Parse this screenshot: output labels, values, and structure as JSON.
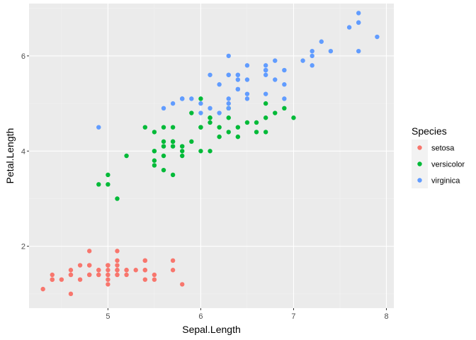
{
  "chart_data": {
    "type": "scatter",
    "xlabel": "Sepal.Length",
    "ylabel": "Petal.Length",
    "xlim": [
      4.15,
      8.08
    ],
    "ylim": [
      0.7,
      7.1
    ],
    "x_ticks": [
      5,
      6,
      7,
      8
    ],
    "y_ticks": [
      2,
      4,
      6
    ],
    "grid": true,
    "legend": {
      "title": "Species",
      "position": "right"
    },
    "series": [
      {
        "name": "setosa",
        "color": "#F8766D",
        "points": [
          [
            5.1,
            1.4
          ],
          [
            4.9,
            1.4
          ],
          [
            4.7,
            1.3
          ],
          [
            4.6,
            1.5
          ],
          [
            5.0,
            1.4
          ],
          [
            5.4,
            1.7
          ],
          [
            4.6,
            1.4
          ],
          [
            5.0,
            1.5
          ],
          [
            4.4,
            1.4
          ],
          [
            4.9,
            1.5
          ],
          [
            5.4,
            1.5
          ],
          [
            4.8,
            1.6
          ],
          [
            4.8,
            1.4
          ],
          [
            4.3,
            1.1
          ],
          [
            5.8,
            1.2
          ],
          [
            5.7,
            1.5
          ],
          [
            5.4,
            1.3
          ],
          [
            5.1,
            1.4
          ],
          [
            5.7,
            1.7
          ],
          [
            5.1,
            1.5
          ],
          [
            5.4,
            1.7
          ],
          [
            5.1,
            1.5
          ],
          [
            4.6,
            1.0
          ],
          [
            5.1,
            1.7
          ],
          [
            4.8,
            1.9
          ],
          [
            5.0,
            1.6
          ],
          [
            5.0,
            1.6
          ],
          [
            5.2,
            1.5
          ],
          [
            5.2,
            1.4
          ],
          [
            4.7,
            1.6
          ],
          [
            4.8,
            1.6
          ],
          [
            5.4,
            1.5
          ],
          [
            5.2,
            1.5
          ],
          [
            5.5,
            1.4
          ],
          [
            4.9,
            1.5
          ],
          [
            5.0,
            1.2
          ],
          [
            5.5,
            1.3
          ],
          [
            4.9,
            1.4
          ],
          [
            4.4,
            1.3
          ],
          [
            5.1,
            1.5
          ],
          [
            5.0,
            1.3
          ],
          [
            4.5,
            1.3
          ],
          [
            4.4,
            1.3
          ],
          [
            5.0,
            1.6
          ],
          [
            5.1,
            1.9
          ],
          [
            4.8,
            1.4
          ],
          [
            5.1,
            1.6
          ],
          [
            4.6,
            1.4
          ],
          [
            5.3,
            1.5
          ],
          [
            5.0,
            1.4
          ]
        ]
      },
      {
        "name": "versicolor",
        "color": "#00BA38",
        "points": [
          [
            7.0,
            4.7
          ],
          [
            6.4,
            4.5
          ],
          [
            6.9,
            4.9
          ],
          [
            5.5,
            4.0
          ],
          [
            6.5,
            4.6
          ],
          [
            5.7,
            4.5
          ],
          [
            6.3,
            4.7
          ],
          [
            4.9,
            3.3
          ],
          [
            6.6,
            4.6
          ],
          [
            5.2,
            3.9
          ],
          [
            5.0,
            3.5
          ],
          [
            5.9,
            4.2
          ],
          [
            6.0,
            4.0
          ],
          [
            6.1,
            4.7
          ],
          [
            5.6,
            3.6
          ],
          [
            6.7,
            4.4
          ],
          [
            5.6,
            4.5
          ],
          [
            5.8,
            4.1
          ],
          [
            6.2,
            4.5
          ],
          [
            5.6,
            3.9
          ],
          [
            5.9,
            4.8
          ],
          [
            6.1,
            4.0
          ],
          [
            6.3,
            4.9
          ],
          [
            6.1,
            4.7
          ],
          [
            6.4,
            4.3
          ],
          [
            6.6,
            4.4
          ],
          [
            6.8,
            4.8
          ],
          [
            6.7,
            5.0
          ],
          [
            6.0,
            4.5
          ],
          [
            5.7,
            3.5
          ],
          [
            5.5,
            3.8
          ],
          [
            5.5,
            3.7
          ],
          [
            5.8,
            3.9
          ],
          [
            6.0,
            5.1
          ],
          [
            5.4,
            4.5
          ],
          [
            6.0,
            4.5
          ],
          [
            6.7,
            4.7
          ],
          [
            6.3,
            4.4
          ],
          [
            5.6,
            4.1
          ],
          [
            5.5,
            4.0
          ],
          [
            5.5,
            4.4
          ],
          [
            6.1,
            4.6
          ],
          [
            5.8,
            4.0
          ],
          [
            5.0,
            3.3
          ],
          [
            5.6,
            4.2
          ],
          [
            5.7,
            4.2
          ],
          [
            5.7,
            4.2
          ],
          [
            6.2,
            4.3
          ],
          [
            5.1,
            3.0
          ],
          [
            5.7,
            4.1
          ]
        ]
      },
      {
        "name": "virginica",
        "color": "#619CFF",
        "points": [
          [
            6.3,
            6.0
          ],
          [
            5.8,
            5.1
          ],
          [
            7.1,
            5.9
          ],
          [
            6.3,
            5.6
          ],
          [
            6.5,
            5.8
          ],
          [
            7.6,
            6.6
          ],
          [
            4.9,
            4.5
          ],
          [
            7.3,
            6.3
          ],
          [
            6.7,
            5.8
          ],
          [
            7.2,
            6.1
          ],
          [
            6.5,
            5.1
          ],
          [
            6.4,
            5.3
          ],
          [
            6.8,
            5.5
          ],
          [
            5.7,
            5.0
          ],
          [
            5.8,
            5.1
          ],
          [
            6.4,
            5.3
          ],
          [
            6.5,
            5.5
          ],
          [
            7.7,
            6.7
          ],
          [
            7.7,
            6.9
          ],
          [
            6.0,
            5.0
          ],
          [
            6.9,
            5.7
          ],
          [
            5.6,
            4.9
          ],
          [
            7.7,
            6.7
          ],
          [
            6.3,
            4.9
          ],
          [
            6.7,
            5.7
          ],
          [
            7.2,
            6.0
          ],
          [
            6.2,
            4.8
          ],
          [
            6.1,
            4.9
          ],
          [
            6.4,
            5.6
          ],
          [
            7.2,
            5.8
          ],
          [
            7.4,
            6.1
          ],
          [
            7.9,
            6.4
          ],
          [
            6.4,
            5.6
          ],
          [
            6.3,
            5.1
          ],
          [
            6.1,
            5.6
          ],
          [
            7.7,
            6.1
          ],
          [
            6.3,
            5.6
          ],
          [
            6.4,
            5.5
          ],
          [
            6.0,
            4.8
          ],
          [
            6.9,
            5.4
          ],
          [
            6.7,
            5.6
          ],
          [
            6.9,
            5.1
          ],
          [
            5.8,
            5.1
          ],
          [
            6.8,
            5.9
          ],
          [
            6.7,
            5.7
          ],
          [
            6.7,
            5.2
          ],
          [
            6.3,
            5.0
          ],
          [
            6.5,
            5.2
          ],
          [
            6.2,
            5.4
          ],
          [
            5.9,
            5.1
          ]
        ]
      }
    ]
  }
}
